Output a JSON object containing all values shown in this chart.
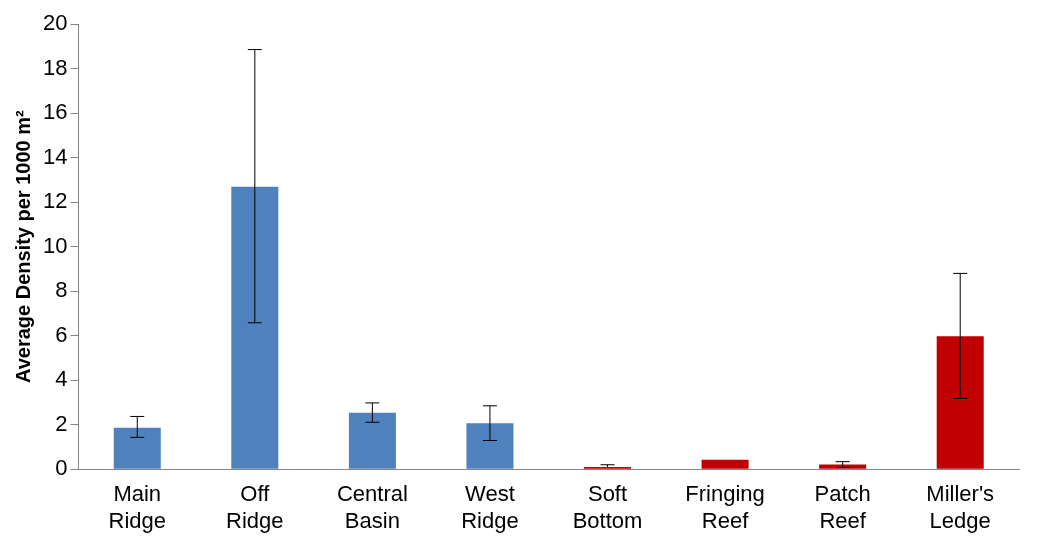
{
  "chart_data": {
    "type": "bar",
    "ylabel": "Average Density per 1000 m²",
    "categories": [
      "Main Ridge",
      "Off Ridge",
      "Central Basin",
      "West Ridge",
      "Soft Bottom",
      "Fringing Reef",
      "Patch Reef",
      "Miller's Ledge"
    ],
    "values": [
      1.86,
      12.69,
      2.54,
      2.06,
      0.1,
      0.42,
      0.21,
      5.97
    ],
    "colors": [
      "#4f81bd",
      "#4f81bd",
      "#4f81bd",
      "#4f81bd",
      "#c00000",
      "#c00000",
      "#c00000",
      "#c00000"
    ],
    "errors": [
      [
        1.43,
        2.37
      ],
      [
        6.58,
        18.86
      ],
      [
        2.11,
        2.98
      ],
      [
        1.29,
        2.85
      ],
      [
        0.1,
        0.2
      ],
      null,
      0.13,
      [
        3.18,
        8.8
      ]
    ],
    "ylim": [
      0,
      20
    ],
    "yticks": [
      0,
      2,
      4,
      6,
      8,
      10,
      12,
      14,
      16,
      18,
      20
    ],
    "grid": false,
    "legend": false
  }
}
